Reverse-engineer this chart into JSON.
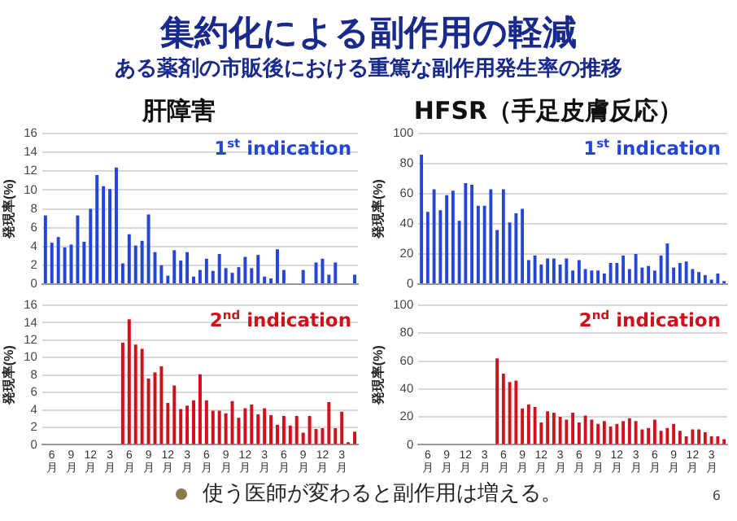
{
  "chart_data": [
    {
      "type": "bar",
      "title": "肝障害",
      "ylabel": "発現率(%)",
      "annotations": [
        "1$^{st}$ indication",
        "集約化による副作用の軽減",
        "ある薬剤の市販後における重篤な副作用発生率の推移"
      ],
      "categories": [
        null,
        "6月",
        null,
        null,
        "9月",
        null,
        null,
        "12月",
        null,
        null,
        "3月",
        null,
        null,
        "6月",
        null,
        null,
        "9月",
        null,
        null,
        "12月",
        null,
        null,
        "3月",
        null,
        null,
        "6月",
        null,
        null,
        "9月",
        null,
        null,
        "12月",
        null,
        null,
        "3月",
        null,
        null,
        "6月",
        null,
        null,
        "9月",
        null,
        null,
        "12月",
        null,
        null,
        "3月",
        null,
        null
      ],
      "series": [
        {
          "color": "#2346d8",
          "values": [
            7.3,
            4.4,
            5.0,
            3.9,
            4.2,
            7.3,
            4.5,
            8.0,
            11.6,
            10.4,
            10.1,
            12.4,
            2.2,
            5.3,
            4.1,
            4.6,
            7.4,
            3.4,
            2.0,
            0.9,
            3.6,
            2.5,
            3.4,
            0.8,
            1.5,
            2.7,
            1.4,
            3.2,
            1.7,
            1.2,
            1.8,
            2.9,
            1.7,
            3.1,
            0.8,
            0.6,
            3.7,
            1.5,
            null,
            null,
            1.5,
            null,
            2.3,
            2.7,
            1.0,
            2.3,
            null,
            null,
            1.0
          ]
        }
      ],
      "ylim": [
        0,
        16
      ],
      "yticks": [
        0,
        2,
        4,
        6,
        8,
        10,
        12,
        14,
        16
      ],
      "grid": "y",
      "legend": false,
      "tick_labels": "y"
    },
    {
      "type": "bar",
      "ylabel": "発現率(%)",
      "annotations": [
        "2$^{nd}$ indication"
      ],
      "categories": [
        null,
        "6月",
        null,
        null,
        "9月",
        null,
        null,
        "12月",
        null,
        null,
        "3月",
        null,
        null,
        "6月",
        null,
        null,
        "9月",
        null,
        null,
        "12月",
        null,
        null,
        "3月",
        null,
        null,
        "6月",
        null,
        null,
        "9月",
        null,
        null,
        "12月",
        null,
        null,
        "3月",
        null,
        null,
        "6月",
        null,
        null,
        "9月",
        null,
        null,
        "12月",
        null,
        null,
        "3月",
        null,
        null
      ],
      "series": [
        {
          "color": "#d0101c",
          "values": [
            null,
            null,
            null,
            null,
            null,
            null,
            null,
            null,
            null,
            null,
            null,
            null,
            11.7,
            14.4,
            11.5,
            11.0,
            7.6,
            8.3,
            9.0,
            4.8,
            6.8,
            4.1,
            4.5,
            5.1,
            8.1,
            5.1,
            3.9,
            3.9,
            3.6,
            5.0,
            3.1,
            4.2,
            4.6,
            3.5,
            4.2,
            3.4,
            2.3,
            3.3,
            2.2,
            3.3,
            1.4,
            3.3,
            1.8,
            1.9,
            4.9,
            1.9,
            3.8,
            0.3,
            1.5
          ]
        }
      ],
      "ylim": [
        0,
        16
      ],
      "yticks": [
        0,
        2,
        4,
        6,
        8,
        10,
        12,
        14,
        16
      ],
      "grid": "y",
      "legend": false
    },
    {
      "type": "bar",
      "title": "HFSR（手足皮膚反応）",
      "ylabel": "発現率(%)",
      "annotations": [
        "1$^{st}$ indication"
      ],
      "categories": [
        null,
        "6月",
        null,
        null,
        "9月",
        null,
        null,
        "12月",
        null,
        null,
        "3月",
        null,
        null,
        "6月",
        null,
        null,
        "9月",
        null,
        null,
        "12月",
        null,
        null,
        "3月",
        null,
        null,
        "6月",
        null,
        null,
        "9月",
        null,
        null,
        "12月",
        null,
        null,
        "3月",
        null,
        null,
        "6月",
        null,
        null,
        "9月",
        null,
        null,
        "12月",
        null,
        null,
        "3月",
        null,
        null
      ],
      "series": [
        {
          "color": "#2346d8",
          "values": [
            86,
            48,
            63,
            49,
            59,
            62,
            42,
            67,
            66,
            52,
            52,
            63,
            36,
            63,
            41,
            47,
            50,
            16,
            19,
            13,
            17,
            17,
            13,
            17,
            9,
            16,
            10,
            9,
            9,
            7,
            14,
            14,
            19,
            10,
            20,
            11,
            12,
            9,
            19,
            27,
            11,
            14,
            15,
            10,
            8,
            6,
            3,
            7,
            2
          ]
        }
      ],
      "ylim": [
        0,
        100
      ],
      "yticks": [
        0,
        20,
        40,
        60,
        80,
        100
      ],
      "grid": "y",
      "legend": false,
      "tick_labels": "y"
    },
    {
      "type": "bar",
      "ylabel": "発現率(%)",
      "annotations": [
        "2$^{nd}$ indication",
        "使う医師が変わると副作用は増える。",
        "6"
      ],
      "categories": [
        null,
        "6月",
        null,
        null,
        "9月",
        null,
        null,
        "12月",
        null,
        null,
        "3月",
        null,
        null,
        "6月",
        null,
        null,
        "9月",
        null,
        null,
        "12月",
        null,
        null,
        "3月",
        null,
        null,
        "6月",
        null,
        null,
        "9月",
        null,
        null,
        "12月",
        null,
        null,
        "3月",
        null,
        null,
        "6月",
        null,
        null,
        "9月",
        null,
        null,
        "12月",
        null,
        null,
        "3月",
        null,
        null
      ],
      "series": [
        {
          "color": "#d0101c",
          "values": [
            null,
            null,
            null,
            null,
            null,
            null,
            null,
            null,
            null,
            null,
            null,
            null,
            62,
            51,
            45,
            46,
            26,
            29,
            27,
            16,
            24,
            23,
            20,
            18,
            23,
            16,
            21,
            18,
            15,
            17,
            13,
            15,
            17,
            19,
            17,
            11,
            12,
            18,
            10,
            12,
            15,
            10,
            6,
            11,
            11,
            9,
            6,
            6,
            4
          ]
        }
      ],
      "ylim": [
        0,
        100
      ],
      "yticks": [
        0,
        20,
        40,
        60,
        80,
        100
      ],
      "grid": "y",
      "legend": false
    }
  ]
}
